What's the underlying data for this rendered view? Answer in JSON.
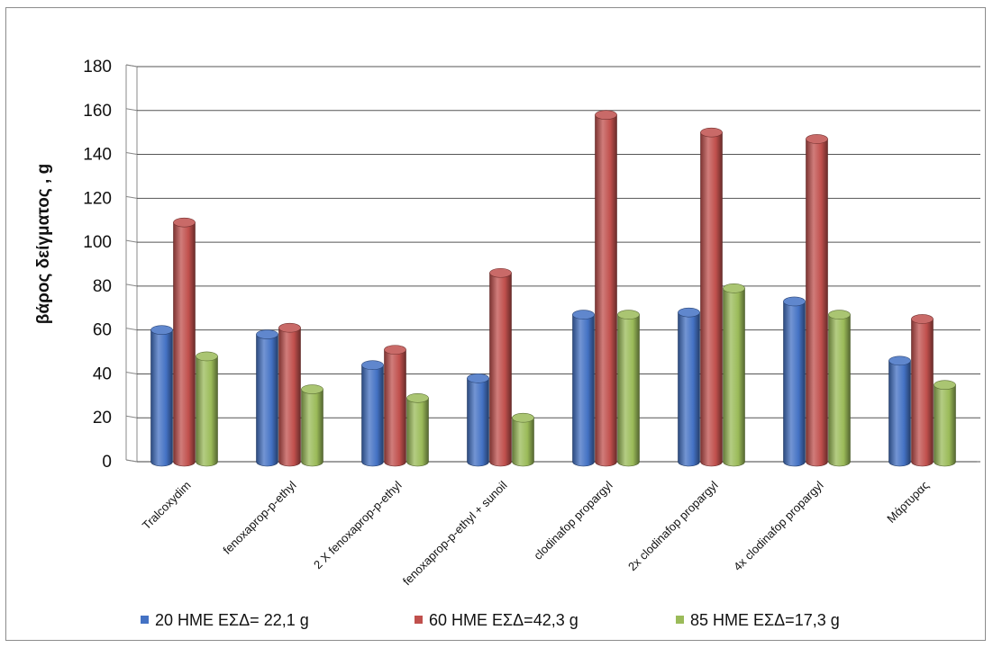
{
  "chart_data": {
    "type": "bar",
    "title": "",
    "xlabel": "",
    "ylabel": "βάρος δείγματος , g",
    "ylim": [
      0,
      180
    ],
    "yticks": [
      0,
      20,
      40,
      60,
      80,
      100,
      120,
      140,
      160,
      180
    ],
    "grid": true,
    "legend": "bottom",
    "style": "3d-cylinder",
    "categories": [
      "Tralcoxydim",
      "fenoxaprop-p-ethyl",
      "2 X fenoxaprop-p-ethyl",
      "fenoxaprop-p-ethyl + sunoil",
      "clodinafop propargyl",
      "2x clodinafop propargyl",
      "4x clodinafop propargyl",
      "Μάρτυρας"
    ],
    "series": [
      {
        "name": "20 ΗΜΕ  ΕΣΔ= 22,1 g",
        "color": "#4472C4",
        "values": [
          60,
          58,
          44,
          38,
          67,
          68,
          73,
          46
        ]
      },
      {
        "name": "60 ΗΜΕ ΕΣΔ=42,3 g",
        "color": "#C0504D",
        "values": [
          109,
          61,
          51,
          86,
          158,
          150,
          147,
          65
        ]
      },
      {
        "name": "85 ΗΜΕ ΕΣΔ=17,3 g",
        "color": "#9BBB59",
        "values": [
          48,
          33,
          29,
          20,
          67,
          79,
          67,
          35
        ]
      }
    ]
  }
}
